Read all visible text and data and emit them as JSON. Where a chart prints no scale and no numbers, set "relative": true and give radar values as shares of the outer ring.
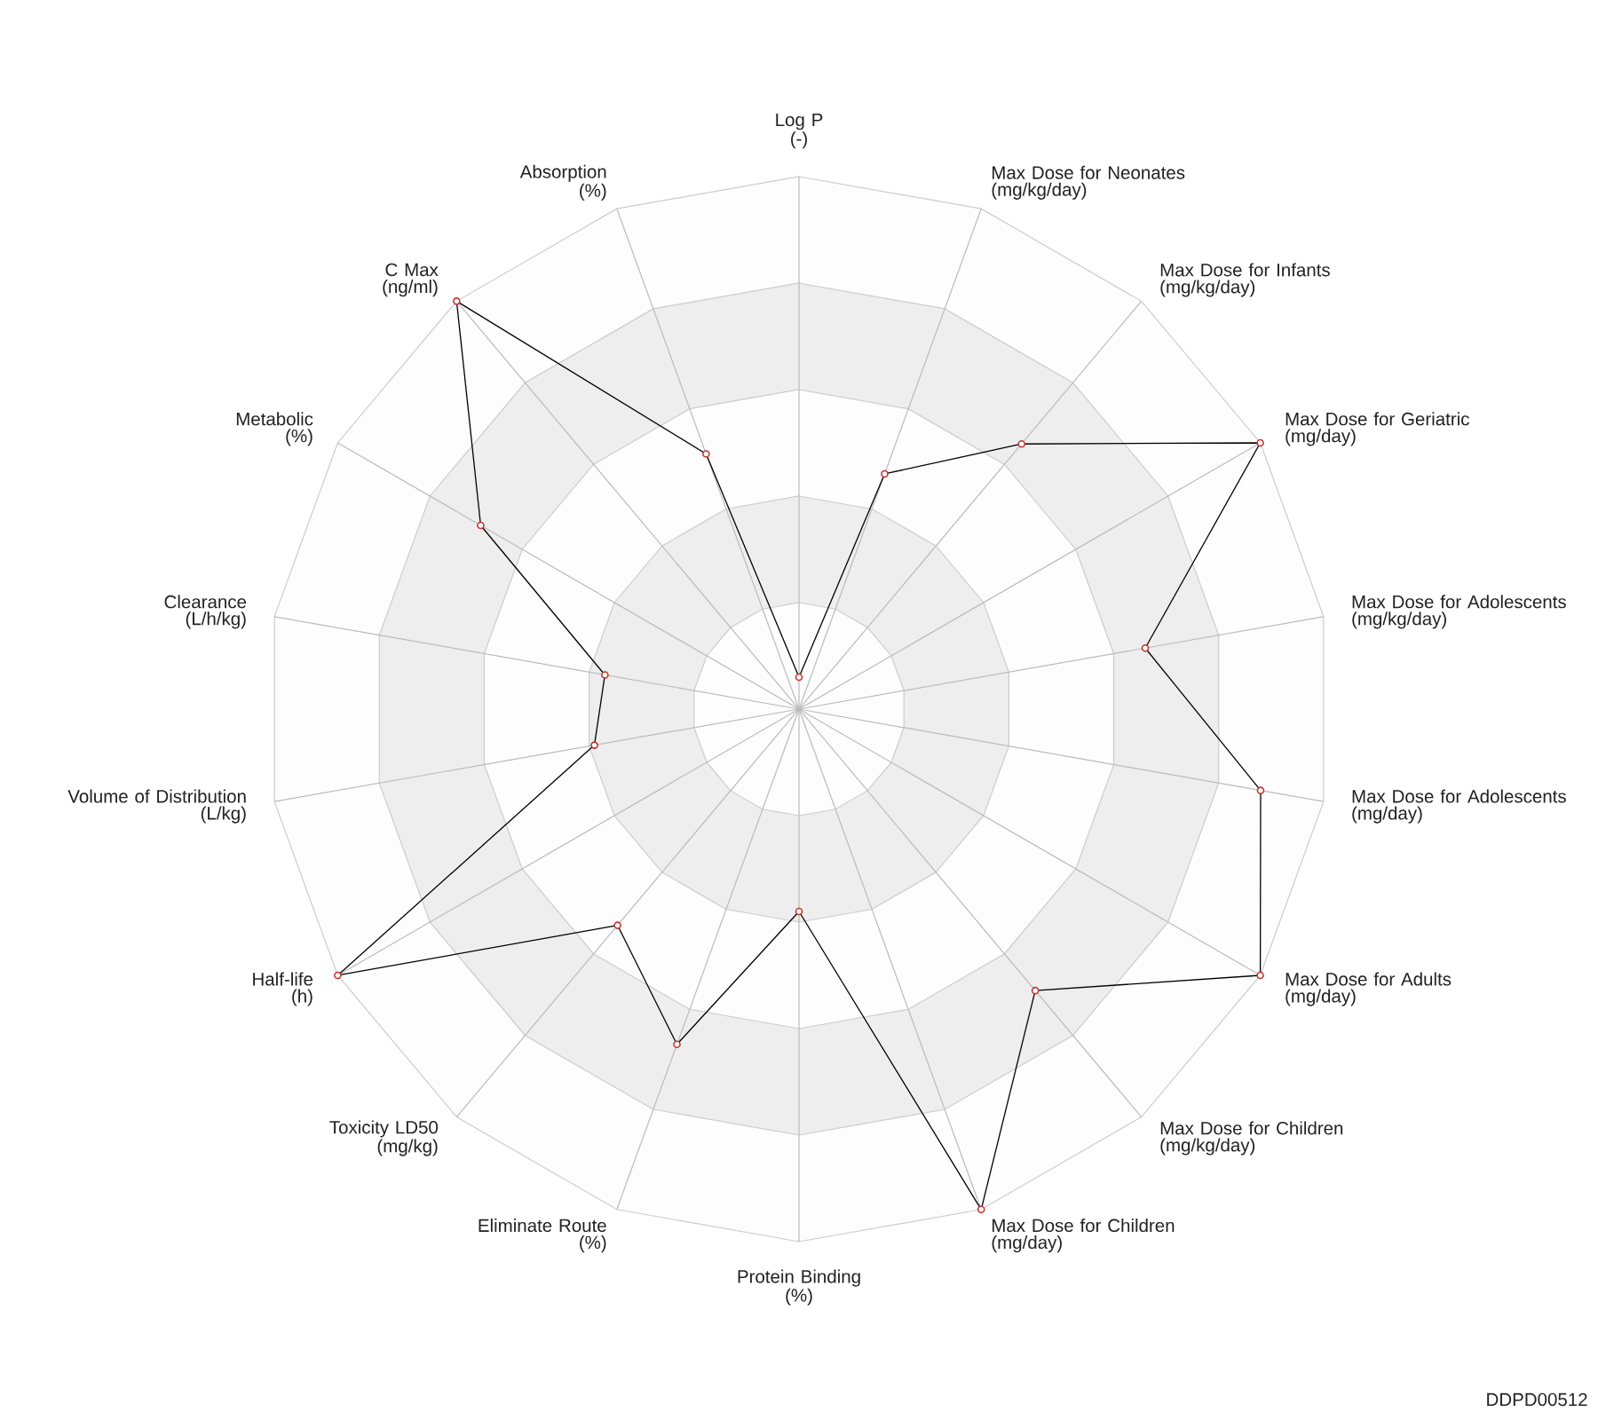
{
  "chart_data": {
    "type": "radar",
    "relative": true,
    "grid": true,
    "marker": "circle",
    "line_style": "solid",
    "categories": [
      "Log P\n(-)",
      "Max Dose for Neonates\n(mg/kg/day)",
      "Max Dose for Infants\n(mg/kg/day)",
      "Max Dose for Geriatric\n(mg/day)",
      "Max Dose for Adolescents\n(mg/kg/day)",
      "Max Dose for Adolescents\n(mg/day)",
      "Max Dose for Adults\n(mg/day)",
      "Max Dose for Children\n(mg/kg/day)",
      "Max Dose for Children\n(mg/day)",
      "Protein Binding\n(%)",
      "Eliminate Route\n(%)",
      "Toxicity LD50\n(mg/kg)",
      "Half-life\n(h)",
      "Volume of Distribution\n(L/kg)",
      "Clearance\n(L/h/kg)",
      "Metabolic\n(%)",
      "C Max\n(ng/ml)",
      "Absorption\n(%)"
    ],
    "series": [
      {
        "color": "#000000",
        "values": [
          0.06,
          0.47,
          0.65,
          1,
          0.66,
          0.88,
          1,
          0.69,
          1,
          0.38,
          0.67,
          0.53,
          1,
          0.39,
          0.37,
          0.69,
          1,
          0.51
        ]
      }
    ],
    "annotations": [
      "DDPD00512"
    ]
  }
}
